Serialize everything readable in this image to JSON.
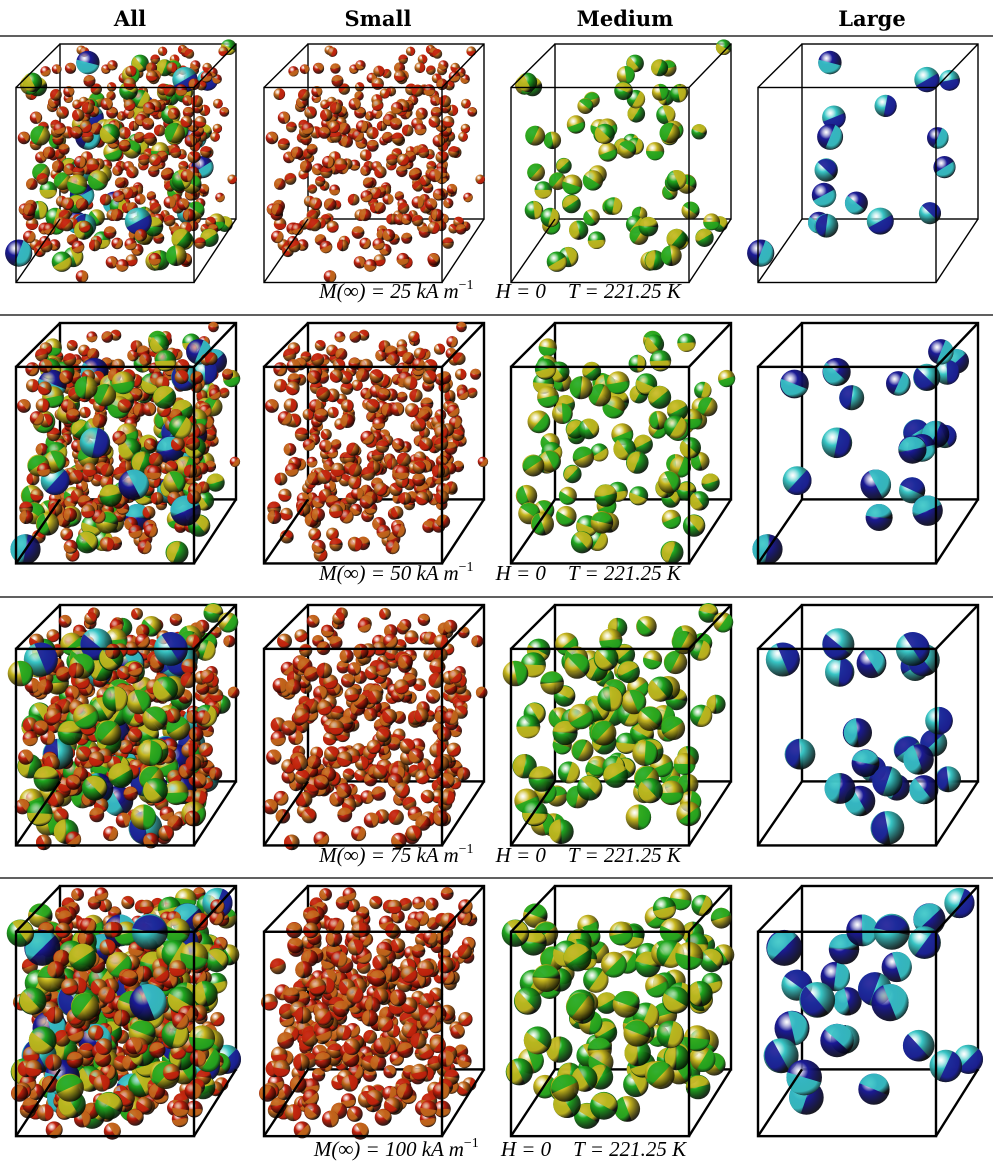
{
  "columns": [
    "All",
    "Small",
    "Medium",
    "Large"
  ],
  "rows": [
    {
      "magnetization": "M(∞) = 25 kA m",
      "exponent": "−1",
      "field": "H = 0",
      "temperature": "T = 221.25 K"
    },
    {
      "magnetization": "M(∞) = 50 kA m",
      "exponent": "−1",
      "field": "H = 0",
      "temperature": "T = 221.25 K"
    },
    {
      "magnetization": "M(∞) = 75 kA m",
      "exponent": "−1",
      "field": "H = 0",
      "temperature": "T = 221.25 K"
    },
    {
      "magnetization": "M(∞) = 100 kA m",
      "exponent": "−1",
      "field": "H = 0",
      "temperature": "T = 221.25 K"
    }
  ]
}
